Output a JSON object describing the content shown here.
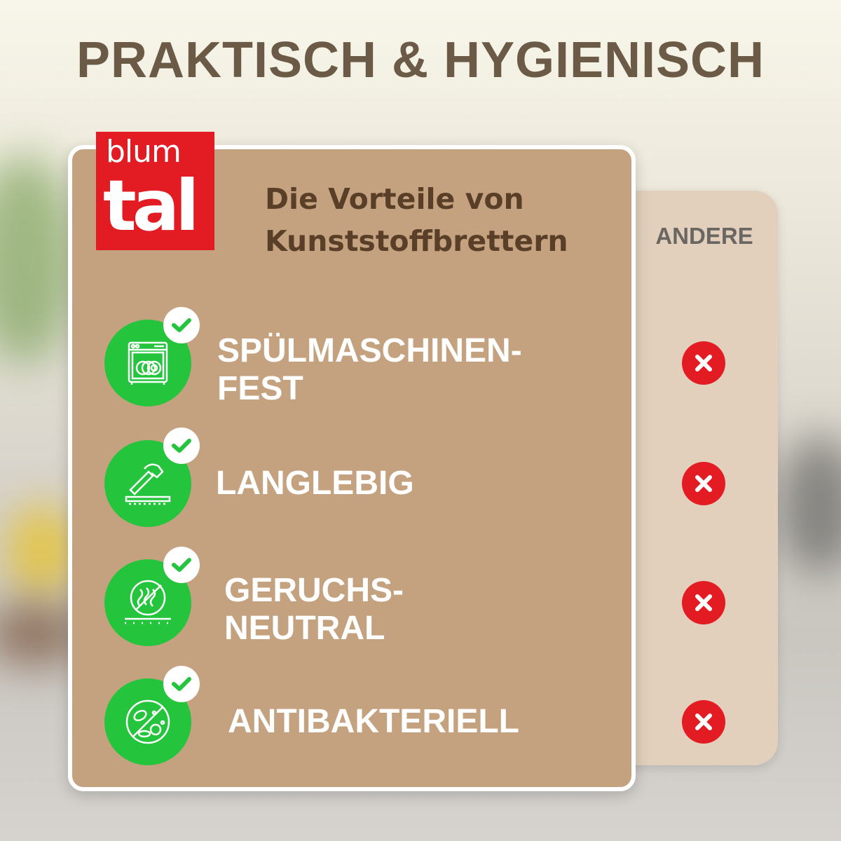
{
  "title": "PRAKTISCH & HYGIENISCH",
  "logo": {
    "line1": "blum",
    "line2": "tal",
    "color": "#e31b23"
  },
  "subtitle": {
    "line1": "Die Vorteile von",
    "line2": "Kunststoffbrettern"
  },
  "compare_label": "ANDERE",
  "colors": {
    "card": "#c4a27f",
    "back_card": "#e2d0bd",
    "check_green": "#24c43d",
    "cross_red": "#e31b23"
  },
  "features": [
    {
      "line1": "SPÜLMASCHINEN-",
      "line2": "FEST",
      "icon": "dishwasher-icon",
      "blumtal": "check",
      "andere": "cross"
    },
    {
      "line1": "LANGLEBIG",
      "line2": "",
      "icon": "hammer-board-icon",
      "blumtal": "check",
      "andere": "cross"
    },
    {
      "line1": "GERUCHS-",
      "line2": "NEUTRAL",
      "icon": "no-odor-icon",
      "blumtal": "check",
      "andere": "cross"
    },
    {
      "line1": "ANTIBAKTERIELL",
      "line2": "",
      "icon": "no-bacteria-icon",
      "blumtal": "check",
      "andere": "cross"
    }
  ]
}
